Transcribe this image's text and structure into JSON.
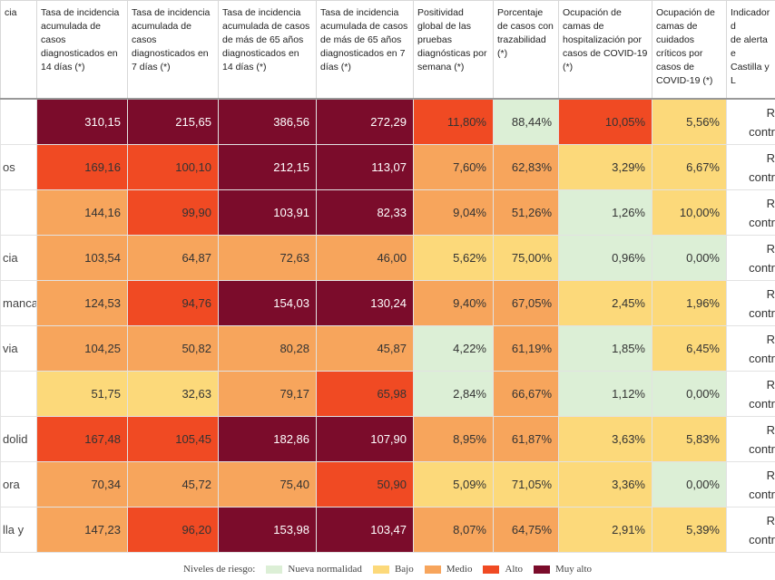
{
  "table": {
    "headers": [
      "cia",
      "Tasa de incidencia acumulada de casos diagnosticados en 14 días (*)",
      "Tasa de incidencia acumulada de casos diagnosticados en 7 días (*)",
      "Tasa de incidencia acumulada de casos de más de 65 años diagnosticados en 14 días (*)",
      "Tasa de incidencia acumulada de casos de más de 65 años diagnosticados en 7 días (*)",
      "Positividad global de las pruebas diagnósticas por semana (*)",
      "Porcentaje de casos con trazabilidad (*)",
      "Ocupación de camas de hospitalización por casos de COVID-19 (*)",
      "Ocupación de camas de cuidados críticos por casos de COVID-19 (*)",
      "Indicador d\nde alerta e\nCastilla y L"
    ],
    "rows": [
      {
        "label": "",
        "values": [
          "310,15",
          "215,65",
          "386,56",
          "272,29",
          "11,80%",
          "88,44%",
          "10,05%",
          "5,56%"
        ],
        "colors": [
          "#7b0c2b",
          "#7b0c2b",
          "#7b0c2b",
          "#7b0c2b",
          "#f04a23",
          "#dcefd6",
          "#f04a23",
          "#fcd97a"
        ],
        "indicator": "R\ncontr"
      },
      {
        "label": "os",
        "values": [
          "169,16",
          "100,10",
          "212,15",
          "113,07",
          "7,60%",
          "62,83%",
          "3,29%",
          "6,67%"
        ],
        "colors": [
          "#f04a23",
          "#f04a23",
          "#7b0c2b",
          "#7b0c2b",
          "#f7a55c",
          "#f7a55c",
          "#fcd97a",
          "#fcd97a"
        ],
        "indicator": "R\ncontr"
      },
      {
        "label": "",
        "values": [
          "144,16",
          "99,90",
          "103,91",
          "82,33",
          "9,04%",
          "51,26%",
          "1,26%",
          "10,00%"
        ],
        "colors": [
          "#f7a55c",
          "#f04a23",
          "#7b0c2b",
          "#7b0c2b",
          "#f7a55c",
          "#f7a55c",
          "#dcefd6",
          "#fcd97a"
        ],
        "indicator": "R\ncontr"
      },
      {
        "label": "cia",
        "values": [
          "103,54",
          "64,87",
          "72,63",
          "46,00",
          "5,62%",
          "75,00%",
          "0,96%",
          "0,00%"
        ],
        "colors": [
          "#f7a55c",
          "#f7a55c",
          "#f7a55c",
          "#f7a55c",
          "#fcd97a",
          "#fcd97a",
          "#dcefd6",
          "#dcefd6"
        ],
        "indicator": "R\ncontr"
      },
      {
        "label": "manca",
        "values": [
          "124,53",
          "94,76",
          "154,03",
          "130,24",
          "9,40%",
          "67,05%",
          "2,45%",
          "1,96%"
        ],
        "colors": [
          "#f7a55c",
          "#f04a23",
          "#7b0c2b",
          "#7b0c2b",
          "#f7a55c",
          "#f7a55c",
          "#fcd97a",
          "#fcd97a"
        ],
        "indicator": "R\ncontr"
      },
      {
        "label": "via",
        "values": [
          "104,25",
          "50,82",
          "80,28",
          "45,87",
          "4,22%",
          "61,19%",
          "1,85%",
          "6,45%"
        ],
        "colors": [
          "#f7a55c",
          "#f7a55c",
          "#f7a55c",
          "#f7a55c",
          "#dcefd6",
          "#f7a55c",
          "#dcefd6",
          "#fcd97a"
        ],
        "indicator": "R\ncontr"
      },
      {
        "label": "",
        "values": [
          "51,75",
          "32,63",
          "79,17",
          "65,98",
          "2,84%",
          "66,67%",
          "1,12%",
          "0,00%"
        ],
        "colors": [
          "#fcd97a",
          "#fcd97a",
          "#f7a55c",
          "#f04a23",
          "#dcefd6",
          "#f7a55c",
          "#dcefd6",
          "#dcefd6"
        ],
        "indicator": "R\ncontr"
      },
      {
        "label": "dolid",
        "values": [
          "167,48",
          "105,45",
          "182,86",
          "107,90",
          "8,95%",
          "61,87%",
          "3,63%",
          "5,83%"
        ],
        "colors": [
          "#f04a23",
          "#f04a23",
          "#7b0c2b",
          "#7b0c2b",
          "#f7a55c",
          "#f7a55c",
          "#fcd97a",
          "#fcd97a"
        ],
        "indicator": "R\ncontr"
      },
      {
        "label": "ora",
        "values": [
          "70,34",
          "45,72",
          "75,40",
          "50,90",
          "5,09%",
          "71,05%",
          "3,36%",
          "0,00%"
        ],
        "colors": [
          "#f7a55c",
          "#f7a55c",
          "#f7a55c",
          "#f04a23",
          "#fcd97a",
          "#fcd97a",
          "#fcd97a",
          "#dcefd6"
        ],
        "indicator": "R\ncontr"
      },
      {
        "label": "lla y",
        "values": [
          "147,23",
          "96,20",
          "153,98",
          "103,47",
          "8,07%",
          "64,75%",
          "2,91%",
          "5,39%"
        ],
        "colors": [
          "#f7a55c",
          "#f04a23",
          "#7b0c2b",
          "#7b0c2b",
          "#f7a55c",
          "#f7a55c",
          "#fcd97a",
          "#fcd97a"
        ],
        "indicator": "R\ncontr"
      }
    ]
  },
  "legend": {
    "title": "Niveles de riesgo:",
    "items": [
      {
        "name": "Nueva normalidad",
        "color": "#dcefd6"
      },
      {
        "name": "Bajo",
        "color": "#fcd97a"
      },
      {
        "name": "Medio",
        "color": "#f7a55c"
      },
      {
        "name": "Alto",
        "color": "#f04a23"
      },
      {
        "name": "Muy alto",
        "color": "#7b0c2b"
      }
    ]
  }
}
